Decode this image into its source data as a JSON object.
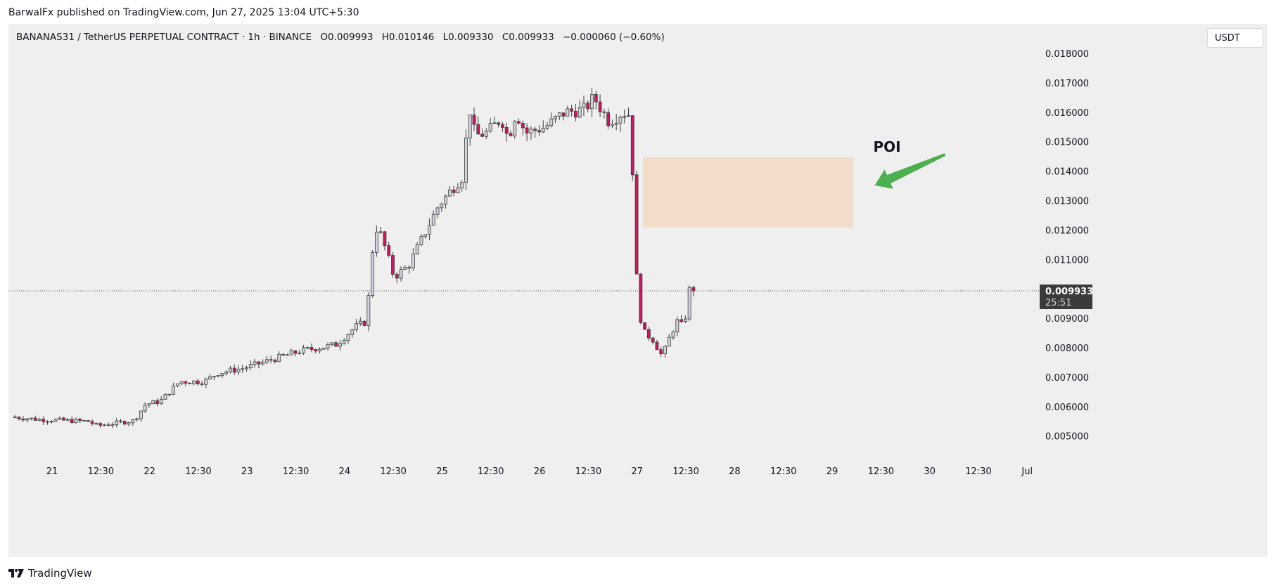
{
  "header": {
    "published_line": "BarwalFx published on TradingView.com, Jun 27, 2025 13:04 UTC+5:30"
  },
  "legend": {
    "symbol_line": "BANANAS31 / TetherUS PERPETUAL CONTRACT · 1h · BINANCE",
    "open": "O0.009993",
    "high": "H0.010146",
    "low": "L0.009330",
    "close": "C0.009933",
    "change": "−0.000060 (−0.60%)"
  },
  "currency_button": "USDT",
  "price_label": {
    "value": "0.009933",
    "countdown": "25:51"
  },
  "annotation": {
    "label": "POI",
    "zone_top": 0.01447,
    "zone_bottom": 0.01209,
    "zone_start_day": 27.06,
    "zone_end_day": 29.22,
    "zone_color": "#f3d6bd",
    "arrow_color": "#4caf50"
  },
  "footer": {
    "brand": "TradingView"
  },
  "colors": {
    "up_candle": "#d1d4dc",
    "down_candle": "#d2155c",
    "wick": "#3c3c3c",
    "background": "#efefef"
  },
  "chart_data": {
    "type": "candlestick",
    "symbol": "BANANAS31 / TetherUS PERPETUAL CONTRACT",
    "interval": "1h",
    "exchange": "BINANCE",
    "ylim": [
      0.0041,
      0.0185
    ],
    "xlim": [
      20.62,
      31.35
    ],
    "yticks": [
      "0.018000",
      "0.017000",
      "0.016000",
      "0.015000",
      "0.014000",
      "0.013000",
      "0.012000",
      "0.011000",
      "0.009000",
      "0.008000",
      "0.007000",
      "0.006000",
      "0.005000"
    ],
    "ytick_values": [
      0.018,
      0.017,
      0.016,
      0.015,
      0.014,
      0.013,
      0.012,
      0.011,
      0.009,
      0.008,
      0.007,
      0.006,
      0.005
    ],
    "xticks": [
      {
        "label": "21",
        "day": 21.0
      },
      {
        "label": "12:30",
        "day": 21.5
      },
      {
        "label": "22",
        "day": 22.0
      },
      {
        "label": "12:30",
        "day": 22.5
      },
      {
        "label": "23",
        "day": 23.0
      },
      {
        "label": "12:30",
        "day": 23.5
      },
      {
        "label": "24",
        "day": 24.0
      },
      {
        "label": "12:30",
        "day": 24.5
      },
      {
        "label": "25",
        "day": 25.0
      },
      {
        "label": "12:30",
        "day": 25.5
      },
      {
        "label": "26",
        "day": 26.0
      },
      {
        "label": "12:30",
        "day": 26.5
      },
      {
        "label": "27",
        "day": 27.0
      },
      {
        "label": "12:30",
        "day": 27.5
      },
      {
        "label": "28",
        "day": 28.0
      },
      {
        "label": "12:30",
        "day": 28.5
      },
      {
        "label": "29",
        "day": 29.0
      },
      {
        "label": "12:30",
        "day": 29.5
      },
      {
        "label": "30",
        "day": 30.0
      },
      {
        "label": "12:30",
        "day": 30.5
      },
      {
        "label": "Jul",
        "day": 31.0
      }
    ],
    "last_price": 0.009933,
    "anchors": [
      {
        "day": 20.62,
        "price": 0.00565
      },
      {
        "day": 20.92,
        "price": 0.00556
      },
      {
        "day": 21.25,
        "price": 0.00552
      },
      {
        "day": 21.42,
        "price": 0.0055
      },
      {
        "day": 21.5,
        "price": 0.00535
      },
      {
        "day": 21.72,
        "price": 0.00545
      },
      {
        "day": 21.88,
        "price": 0.00552
      },
      {
        "day": 22.0,
        "price": 0.00608
      },
      {
        "day": 22.15,
        "price": 0.00618
      },
      {
        "day": 22.35,
        "price": 0.00685
      },
      {
        "day": 22.6,
        "price": 0.00685
      },
      {
        "day": 22.75,
        "price": 0.00715
      },
      {
        "day": 23.0,
        "price": 0.0073
      },
      {
        "day": 23.3,
        "price": 0.0076
      },
      {
        "day": 23.6,
        "price": 0.0079
      },
      {
        "day": 23.95,
        "price": 0.0081
      },
      {
        "day": 24.15,
        "price": 0.0087
      },
      {
        "day": 24.27,
        "price": 0.0089
      },
      {
        "day": 24.31,
        "price": 0.01085
      },
      {
        "day": 24.36,
        "price": 0.0121
      },
      {
        "day": 24.42,
        "price": 0.0118
      },
      {
        "day": 24.55,
        "price": 0.0104
      },
      {
        "day": 24.7,
        "price": 0.0108
      },
      {
        "day": 24.85,
        "price": 0.0118
      },
      {
        "day": 25.0,
        "price": 0.0128
      },
      {
        "day": 25.12,
        "price": 0.0133
      },
      {
        "day": 25.25,
        "price": 0.0138
      },
      {
        "day": 25.32,
        "price": 0.0162
      },
      {
        "day": 25.38,
        "price": 0.0152
      },
      {
        "day": 25.5,
        "price": 0.0153
      },
      {
        "day": 25.65,
        "price": 0.0158
      },
      {
        "day": 25.72,
        "price": 0.0151
      },
      {
        "day": 25.8,
        "price": 0.016
      },
      {
        "day": 25.9,
        "price": 0.0153
      },
      {
        "day": 26.1,
        "price": 0.0155
      },
      {
        "day": 26.3,
        "price": 0.016
      },
      {
        "day": 26.5,
        "price": 0.0161
      },
      {
        "day": 26.6,
        "price": 0.0165
      },
      {
        "day": 26.75,
        "price": 0.0157
      },
      {
        "day": 26.9,
        "price": 0.016
      },
      {
        "day": 26.98,
        "price": 0.0159
      },
      {
        "day": 27.0,
        "price": 0.0134
      },
      {
        "day": 27.05,
        "price": 0.0093
      },
      {
        "day": 27.12,
        "price": 0.0085
      },
      {
        "day": 27.2,
        "price": 0.0083
      },
      {
        "day": 27.3,
        "price": 0.0077
      },
      {
        "day": 27.38,
        "price": 0.0084
      },
      {
        "day": 27.45,
        "price": 0.0089
      },
      {
        "day": 27.52,
        "price": 0.0087
      },
      {
        "day": 27.58,
        "price": 0.01
      }
    ]
  }
}
